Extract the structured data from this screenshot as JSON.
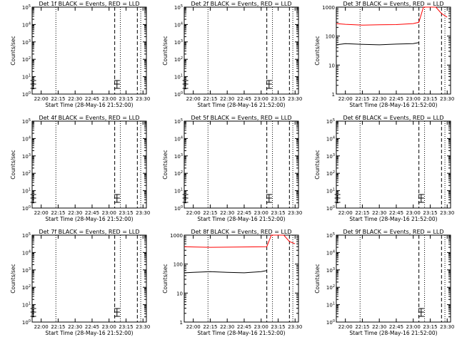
{
  "figure": {
    "time_ticks": [
      "22:00",
      "22:15",
      "22:30",
      "22:45",
      "23:00",
      "23:15",
      "23:30"
    ],
    "xlabel": "Start Time (28-May-16 21:52:00)",
    "ylabel": "Counts/sec",
    "colors": {
      "events": "#000000",
      "lld": "#ff0000",
      "axes": "#000000",
      "background": "#ffffff"
    },
    "line_styles": {
      "dotted": "markers at ~22:13, ~23:10, ~23:28",
      "dashed": "markers at ~23:05, ~23:25"
    }
  },
  "chart_data": [
    {
      "id": "det1f",
      "title": "Det 1f BLACK = Events, RED = LLD",
      "type": "line",
      "y_scale": "log",
      "ylim": [
        1,
        100000
      ],
      "y_ticks": [
        "10^0",
        "10^1",
        "10^2",
        "10^3",
        "10^4",
        "10^5"
      ],
      "x_range": [
        "21:52",
        "23:33"
      ],
      "grid": false,
      "annotations": "small cross/error-bar glyphs near 21:53 and 23:07 at low count levels",
      "series": []
    },
    {
      "id": "det2f",
      "title": "Det 2f BLACK = Events, RED = LLD",
      "type": "line",
      "y_scale": "log",
      "ylim": [
        1,
        100000
      ],
      "y_ticks": [
        "10^0",
        "10^1",
        "10^2",
        "10^3",
        "10^4",
        "10^5"
      ],
      "x_range": [
        "21:52",
        "23:33"
      ],
      "grid": false,
      "annotations": "small cross/error-bar glyphs near 21:53 and 23:07 at low count levels",
      "series": []
    },
    {
      "id": "det3f",
      "title": "Det 3f BLACK = Events, RED = LLD",
      "type": "line",
      "y_scale": "log",
      "ylim": [
        1,
        1000
      ],
      "y_ticks": [
        "1",
        "10",
        "100",
        "1000"
      ],
      "x_range": [
        "21:52",
        "23:33"
      ],
      "grid": false,
      "series": [
        {
          "name": "LLD",
          "color": "#ff0000",
          "x": [
            "21:52",
            "22:00",
            "22:15",
            "22:30",
            "22:45",
            "23:00",
            "23:05",
            "23:09",
            "23:12",
            "23:20",
            "23:25",
            "23:30"
          ],
          "y": [
            270,
            255,
            240,
            245,
            250,
            270,
            300,
            1000,
            1000,
            1000,
            600,
            450
          ]
        },
        {
          "name": "Events",
          "color": "#000000",
          "x": [
            "21:52",
            "22:00",
            "22:15",
            "22:30",
            "22:45",
            "23:00",
            "23:05"
          ],
          "y": [
            50,
            55,
            52,
            50,
            53,
            55,
            60
          ]
        }
      ]
    },
    {
      "id": "det4f",
      "title": "Det 4f BLACK = Events, RED = LLD",
      "type": "line",
      "y_scale": "log",
      "ylim": [
        1,
        100000
      ],
      "y_ticks": [
        "10^0",
        "10^1",
        "10^2",
        "10^3",
        "10^4",
        "10^5"
      ],
      "x_range": [
        "21:52",
        "23:33"
      ],
      "grid": false,
      "annotations": "small cross/error-bar glyphs near 21:53 and 23:07 at low count levels",
      "series": []
    },
    {
      "id": "det5f",
      "title": "Det 5f BLACK = Events, RED = LLD",
      "type": "line",
      "y_scale": "log",
      "ylim": [
        1,
        100000
      ],
      "y_ticks": [
        "10^0",
        "10^1",
        "10^2",
        "10^3",
        "10^4",
        "10^5"
      ],
      "x_range": [
        "21:52",
        "23:33"
      ],
      "grid": false,
      "annotations": "small cross/error-bar glyphs near 21:53 and 23:07 at low count levels",
      "series": []
    },
    {
      "id": "det6f",
      "title": "Det 6f BLACK = Events, RED = LLD",
      "type": "line",
      "y_scale": "log",
      "ylim": [
        1,
        100000
      ],
      "y_ticks": [
        "10^0",
        "10^1",
        "10^2",
        "10^3",
        "10^4",
        "10^5"
      ],
      "x_range": [
        "21:52",
        "23:33"
      ],
      "grid": false,
      "annotations": "small cross/error-bar glyphs near 21:53 and 23:07 at low count levels",
      "series": []
    },
    {
      "id": "det7f",
      "title": "Det 7f BLACK = Events, RED = LLD",
      "type": "line",
      "y_scale": "log",
      "ylim": [
        1,
        100000
      ],
      "y_ticks": [
        "10^0",
        "10^1",
        "10^2",
        "10^3",
        "10^4",
        "10^5"
      ],
      "x_range": [
        "21:52",
        "23:33"
      ],
      "grid": false,
      "annotations": "small cross/error-bar glyphs near 21:53 and 23:07 at low count levels",
      "series": []
    },
    {
      "id": "det8f",
      "title": "Det 8f BLACK = Events, RED = LLD",
      "type": "line",
      "y_scale": "log",
      "ylim": [
        1,
        1000
      ],
      "y_ticks": [
        "1",
        "10",
        "100",
        "1000"
      ],
      "x_range": [
        "21:52",
        "23:33"
      ],
      "grid": false,
      "series": [
        {
          "name": "LLD",
          "color": "#ff0000",
          "x": [
            "21:52",
            "22:00",
            "22:15",
            "22:30",
            "22:45",
            "23:00",
            "23:05",
            "23:09",
            "23:12",
            "23:20",
            "23:25",
            "23:30"
          ],
          "y": [
            400,
            390,
            380,
            385,
            390,
            395,
            400,
            1000,
            1000,
            1000,
            600,
            500
          ]
        },
        {
          "name": "Events",
          "color": "#000000",
          "x": [
            "21:52",
            "22:00",
            "22:15",
            "22:30",
            "22:45",
            "23:00",
            "23:05"
          ],
          "y": [
            50,
            52,
            55,
            52,
            50,
            55,
            60
          ]
        }
      ]
    },
    {
      "id": "det9f",
      "title": "Det 9f BLACK = Events, RED = LLD",
      "type": "line",
      "y_scale": "log",
      "ylim": [
        1,
        100000
      ],
      "y_ticks": [
        "10^0",
        "10^1",
        "10^2",
        "10^3",
        "10^4",
        "10^5"
      ],
      "x_range": [
        "21:52",
        "23:33"
      ],
      "grid": false,
      "annotations": "small cross/error-bar glyphs near 23:07 at low count levels",
      "series": []
    }
  ]
}
